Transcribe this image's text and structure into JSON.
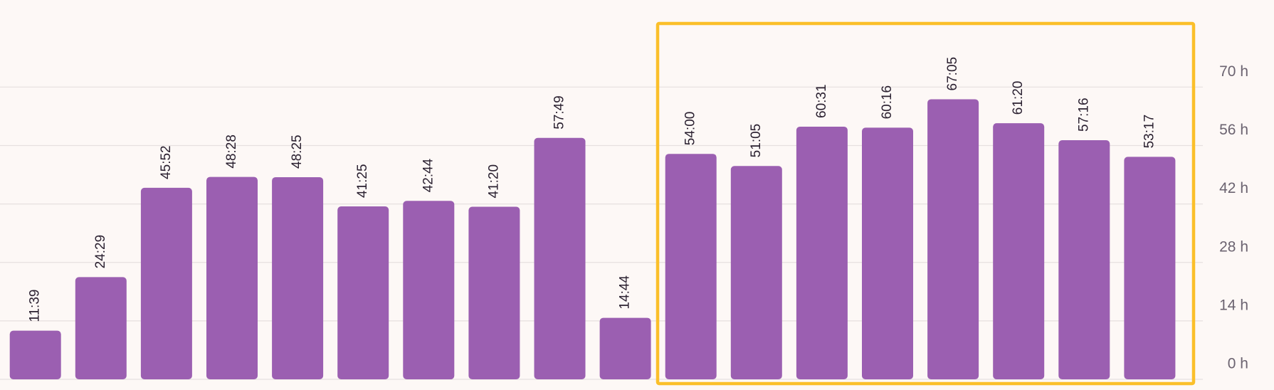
{
  "chart_data": {
    "type": "bar",
    "categories": [
      null,
      null,
      null,
      null,
      null,
      null,
      null,
      null,
      null,
      null,
      null,
      null,
      null,
      null,
      null,
      null,
      null,
      null
    ],
    "values": [
      11.65,
      24.4833,
      45.8667,
      48.4667,
      48.4167,
      41.4167,
      42.7333,
      41.3333,
      57.8167,
      14.7333,
      54,
      51.0833,
      60.5167,
      60.2667,
      67.0833,
      61.3333,
      57.2667,
      53.2833
    ],
    "value_labels": [
      "11:39",
      "24:29",
      "45:52",
      "48:28",
      "48:25",
      "41:25",
      "42:44",
      "41:20",
      "57:49",
      "14:44",
      "54:00",
      "51:05",
      "60:31",
      "60:16",
      "67:05",
      "61:20",
      "57:16",
      "53:17"
    ],
    "color": "#9b5fb1",
    "ylim": [
      0,
      90
    ],
    "yticks": [
      {
        "value": 0,
        "label": "0 h"
      },
      {
        "value": 14,
        "label": "14 h"
      },
      {
        "value": 28,
        "label": "28 h"
      },
      {
        "value": 42,
        "label": "42 h"
      },
      {
        "value": 56,
        "label": "56 h"
      },
      {
        "value": 70,
        "label": "70 h"
      }
    ],
    "grid": true
  }
}
